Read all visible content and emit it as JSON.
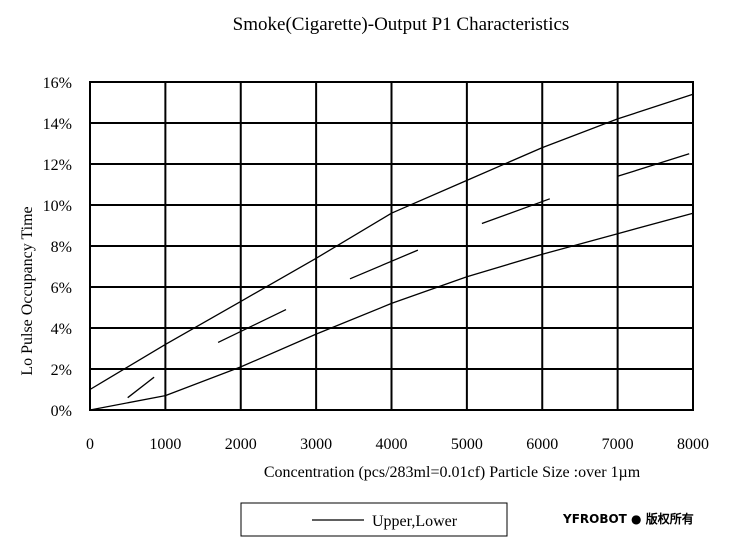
{
  "chart_data": {
    "type": "line",
    "title": "Smoke(Cigarette)-Output P1 Characteristics",
    "xlabel": "Concentration (pcs/283ml=0.01cf)  Particle Size :over 1µm",
    "ylabel": "Lo Pulse Occupancy  Time",
    "xlim": [
      0,
      8000
    ],
    "ylim": [
      0,
      16
    ],
    "x_ticks": [
      0,
      1000,
      2000,
      3000,
      4000,
      5000,
      6000,
      7000,
      8000
    ],
    "x_tick_labels": [
      "0",
      "1000",
      "2000",
      "3000",
      "4000",
      "5000",
      "6000",
      "7000",
      "8000"
    ],
    "y_ticks": [
      0,
      2,
      4,
      6,
      8,
      10,
      12,
      14,
      16
    ],
    "y_tick_labels": [
      "0%",
      "2%",
      "4%",
      "6%",
      "8%",
      "10%",
      "12%",
      "14%",
      "16%"
    ],
    "grid": true,
    "legend": {
      "label": "Upper,Lower",
      "placement": "bottom"
    },
    "series": [
      {
        "role": "upper",
        "x": [
          0,
          1000,
          2000,
          3000,
          4000,
          5000,
          6000,
          7000,
          8000
        ],
        "y": [
          1.0,
          3.2,
          5.3,
          7.4,
          9.6,
          11.2,
          12.8,
          14.2,
          15.4
        ]
      },
      {
        "role": "lower",
        "x": [
          0,
          1000,
          2000,
          3000,
          4000,
          5000,
          6000,
          7000,
          8000
        ],
        "y": [
          0,
          0.7,
          2.1,
          3.7,
          5.2,
          6.5,
          7.6,
          8.6,
          9.6
        ]
      },
      {
        "role": "segment",
        "x": [
          500,
          850
        ],
        "y": [
          0.6,
          1.6
        ]
      },
      {
        "role": "segment",
        "x": [
          1700,
          2600
        ],
        "y": [
          3.3,
          4.9
        ]
      },
      {
        "role": "segment",
        "x": [
          3450,
          4350
        ],
        "y": [
          6.4,
          7.8
        ]
      },
      {
        "role": "segment",
        "x": [
          5200,
          6100
        ],
        "y": [
          9.1,
          10.3
        ]
      },
      {
        "role": "segment",
        "x": [
          7000,
          7950
        ],
        "y": [
          11.4,
          12.5
        ]
      }
    ]
  },
  "watermark": "YFROBOT ● 版权所有"
}
